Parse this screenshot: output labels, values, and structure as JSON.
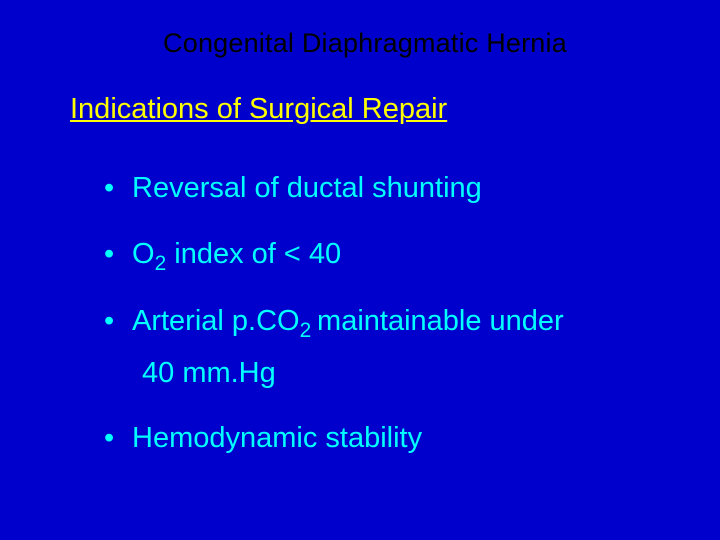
{
  "colors": {
    "background": "#0000cc",
    "title_color": "#000000",
    "subtitle_color": "#ffff00",
    "bullet_color": "#00ffff"
  },
  "typography": {
    "title_fontsize": 27,
    "subtitle_fontsize": 29,
    "bullet_fontsize": 29,
    "font_family": "Arial"
  },
  "title": "Congenital Diaphragmatic Hernia",
  "subtitle": "Indications of Surgical Repair",
  "bullets": {
    "b1": "Reversal of ductal shunting",
    "b2_pre": "O",
    "b2_sub": "2",
    "b2_post": " index of < 40",
    "b3_pre": "Arterial p.CO",
    "b3_sub": "2 ",
    "b3_post": "maintainable under",
    "b3_line2": " 40 mm.Hg",
    "b4": "Hemodynamic stability"
  }
}
